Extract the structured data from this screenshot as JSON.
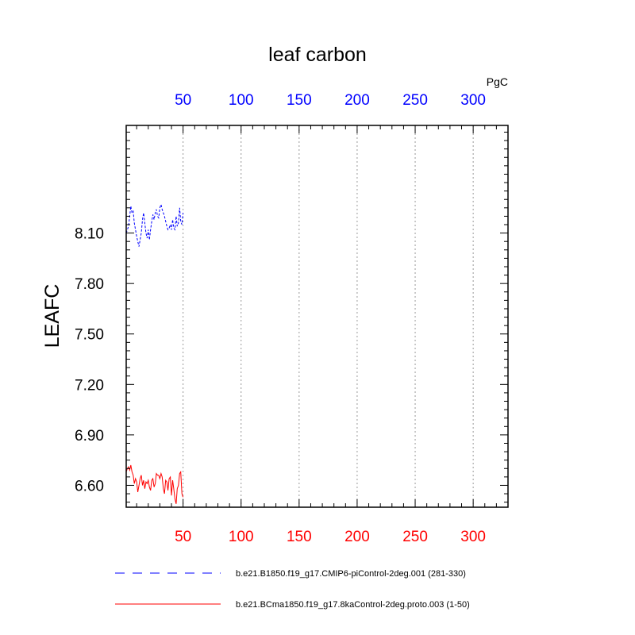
{
  "chart_data": {
    "type": "line",
    "title": "leaf carbon",
    "ylabel": "LEAFC",
    "units": "PgC",
    "xlim": [
      1,
      330
    ],
    "ylim": [
      6.47,
      8.74
    ],
    "yticks": [
      6.6,
      6.9,
      7.2,
      7.5,
      7.8,
      8.1
    ],
    "ytick_labels": [
      "6.60",
      "6.90",
      "7.20",
      "7.50",
      "7.80",
      "8.10"
    ],
    "xticks": [
      50,
      100,
      150,
      200,
      250,
      300
    ],
    "xtick_labels": [
      "50",
      "100",
      "150",
      "200",
      "250",
      "300"
    ],
    "top_axis_color": "#0000ff",
    "bottom_axis_color": "#ff0000",
    "grid": "vertical dotted",
    "series": [
      {
        "name": "b.e21.B1850.f19_g17.CMIP6-piControl-2deg.001 (281-330)",
        "color": "#0000ff",
        "dash": "dashed",
        "x": [
          1,
          2,
          3,
          4,
          5,
          6,
          7,
          8,
          9,
          10,
          11,
          12,
          13,
          14,
          15,
          16,
          17,
          18,
          19,
          20,
          21,
          22,
          23,
          24,
          25,
          26,
          27,
          28,
          29,
          30,
          31,
          32,
          33,
          34,
          35,
          36,
          37,
          38,
          39,
          40,
          41,
          42,
          43,
          44,
          45,
          46,
          47,
          48,
          49,
          50
        ],
        "y": [
          8.1,
          8.12,
          8.14,
          8.2,
          8.26,
          8.22,
          8.23,
          8.16,
          8.12,
          8.08,
          8.05,
          8.02,
          8.06,
          8.1,
          8.18,
          8.22,
          8.16,
          8.1,
          8.07,
          8.12,
          8.06,
          8.12,
          8.17,
          8.21,
          8.18,
          8.22,
          8.24,
          8.2,
          8.19,
          8.25,
          8.27,
          8.24,
          8.22,
          8.2,
          8.17,
          8.14,
          8.12,
          8.13,
          8.15,
          8.12,
          8.18,
          8.13,
          8.12,
          8.2,
          8.14,
          8.16,
          8.25,
          8.17,
          8.15,
          8.22
        ]
      },
      {
        "name": "b.e21.BCma1850.f19_g17.8kaControl-2deg.proto.003 (1-50)",
        "color": "#ff0000",
        "dash": "solid",
        "x": [
          1,
          2,
          3,
          4,
          5,
          6,
          7,
          8,
          9,
          10,
          11,
          12,
          13,
          14,
          15,
          16,
          17,
          18,
          19,
          20,
          21,
          22,
          23,
          24,
          25,
          26,
          27,
          28,
          29,
          30,
          31,
          32,
          33,
          34,
          35,
          36,
          37,
          38,
          39,
          40,
          41,
          42,
          43,
          44,
          45,
          46,
          47,
          48,
          49,
          50
        ],
        "y": [
          6.68,
          6.7,
          6.71,
          6.69,
          6.72,
          6.68,
          6.66,
          6.61,
          6.64,
          6.62,
          6.56,
          6.6,
          6.64,
          6.66,
          6.6,
          6.63,
          6.58,
          6.62,
          6.61,
          6.63,
          6.59,
          6.57,
          6.63,
          6.64,
          6.59,
          6.61,
          6.67,
          6.66,
          6.66,
          6.64,
          6.67,
          6.65,
          6.58,
          6.55,
          6.63,
          6.62,
          6.57,
          6.64,
          6.65,
          6.54,
          6.63,
          6.58,
          6.52,
          6.49,
          6.58,
          6.6,
          6.67,
          6.68,
          6.55,
          6.53
        ]
      }
    ]
  }
}
